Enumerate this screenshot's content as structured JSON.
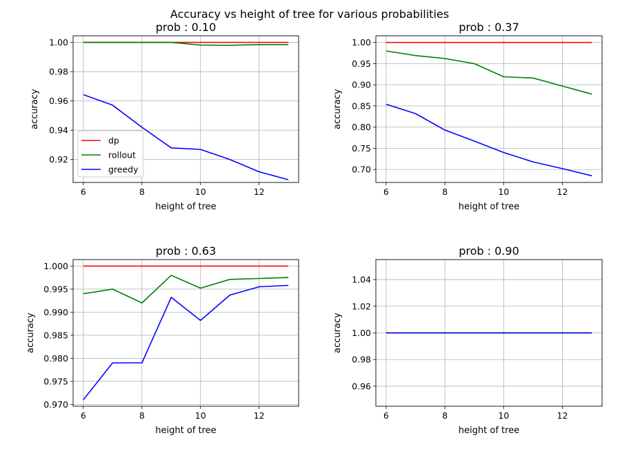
{
  "figure": {
    "suptitle": "Accuracy vs height of tree for various probabilities"
  },
  "chart_data": [
    {
      "type": "line",
      "title": "prob : 0.10",
      "xlabel": "height of tree",
      "ylabel": "accuracy",
      "x": [
        6,
        7,
        8,
        9,
        10,
        11,
        12,
        13
      ],
      "xlim": [
        5.65,
        13.35
      ],
      "ylim": [
        0.9043,
        1.0045
      ],
      "xticks": [
        "6",
        "8",
        "10",
        "12"
      ],
      "yticks": [
        "0.92",
        "0.94",
        "0.96",
        "0.98",
        "1.00"
      ],
      "grid": true,
      "legend": {
        "location": "lower left",
        "entries": [
          "dp",
          "rollout",
          "greedy"
        ]
      },
      "series": [
        {
          "name": "dp",
          "color": "#ff0000",
          "values": [
            1.0,
            1.0,
            1.0,
            1.0,
            1.0,
            1.0,
            1.0,
            1.0
          ]
        },
        {
          "name": "rollout",
          "color": "#008000",
          "values": [
            1.0,
            1.0,
            1.0,
            1.0,
            0.9982,
            0.998,
            0.9985,
            0.9985
          ]
        },
        {
          "name": "greedy",
          "color": "#0000ff",
          "values": [
            0.9643,
            0.9571,
            0.942,
            0.9279,
            0.9269,
            0.92,
            0.9116,
            0.9062
          ]
        }
      ]
    },
    {
      "type": "line",
      "title": "prob : 0.37",
      "xlabel": "height of tree",
      "ylabel": "accuracy",
      "x": [
        6,
        7,
        8,
        9,
        10,
        11,
        12,
        13
      ],
      "xlim": [
        5.65,
        13.35
      ],
      "ylim": [
        0.6693,
        1.0157
      ],
      "xticks": [
        "6",
        "8",
        "10",
        "12"
      ],
      "yticks": [
        "0.70",
        "0.75",
        "0.80",
        "0.85",
        "0.90",
        "0.95",
        "1.00"
      ],
      "grid": true,
      "series": [
        {
          "name": "dp",
          "color": "#ff0000",
          "values": [
            1.0,
            1.0,
            1.0,
            1.0,
            1.0,
            1.0,
            1.0,
            1.0
          ]
        },
        {
          "name": "rollout",
          "color": "#008000",
          "values": [
            0.98,
            0.969,
            0.962,
            0.95,
            0.919,
            0.916,
            0.897,
            0.878
          ]
        },
        {
          "name": "greedy",
          "color": "#0000ff",
          "values": [
            0.854,
            0.832,
            0.793,
            0.767,
            0.74,
            0.718,
            0.702,
            0.685
          ]
        }
      ]
    },
    {
      "type": "line",
      "title": "prob : 0.63",
      "xlabel": "height of tree",
      "ylabel": "accuracy",
      "x": [
        6,
        7,
        8,
        9,
        10,
        11,
        12,
        13
      ],
      "xlim": [
        5.65,
        13.35
      ],
      "ylim": [
        0.9696,
        1.0014
      ],
      "xticks": [
        "6",
        "8",
        "10",
        "12"
      ],
      "yticks": [
        "0.970",
        "0.975",
        "0.980",
        "0.985",
        "0.990",
        "0.995",
        "1.000"
      ],
      "grid": true,
      "series": [
        {
          "name": "dp",
          "color": "#ff0000",
          "values": [
            1.0,
            1.0,
            1.0,
            1.0,
            1.0,
            1.0,
            1.0,
            1.0
          ]
        },
        {
          "name": "rollout",
          "color": "#008000",
          "values": [
            0.994,
            0.995,
            0.992,
            0.998,
            0.9952,
            0.9971,
            0.9973,
            0.9975
          ]
        },
        {
          "name": "greedy",
          "color": "#0000ff",
          "values": [
            0.971,
            0.979,
            0.979,
            0.9932,
            0.9882,
            0.9937,
            0.9955,
            0.9958
          ]
        }
      ]
    },
    {
      "type": "line",
      "title": "prob : 0.90",
      "xlabel": "height of tree",
      "ylabel": "accuracy",
      "x": [
        6,
        7,
        8,
        9,
        10,
        11,
        12,
        13
      ],
      "xlim": [
        5.65,
        13.35
      ],
      "ylim": [
        0.945,
        1.055
      ],
      "xticks": [
        "6",
        "8",
        "10",
        "12"
      ],
      "yticks": [
        "0.96",
        "0.98",
        "1.00",
        "1.02",
        "1.04"
      ],
      "grid": true,
      "series": [
        {
          "name": "dp",
          "color": "#ff0000",
          "values": [
            1.0,
            1.0,
            1.0,
            1.0,
            1.0,
            1.0,
            1.0,
            1.0
          ]
        },
        {
          "name": "rollout",
          "color": "#008000",
          "values": [
            1.0,
            1.0,
            1.0,
            1.0,
            1.0,
            1.0,
            1.0,
            1.0
          ]
        },
        {
          "name": "greedy",
          "color": "#0000ff",
          "values": [
            1.0,
            1.0,
            1.0,
            1.0,
            1.0,
            1.0,
            1.0,
            1.0
          ]
        }
      ]
    }
  ]
}
